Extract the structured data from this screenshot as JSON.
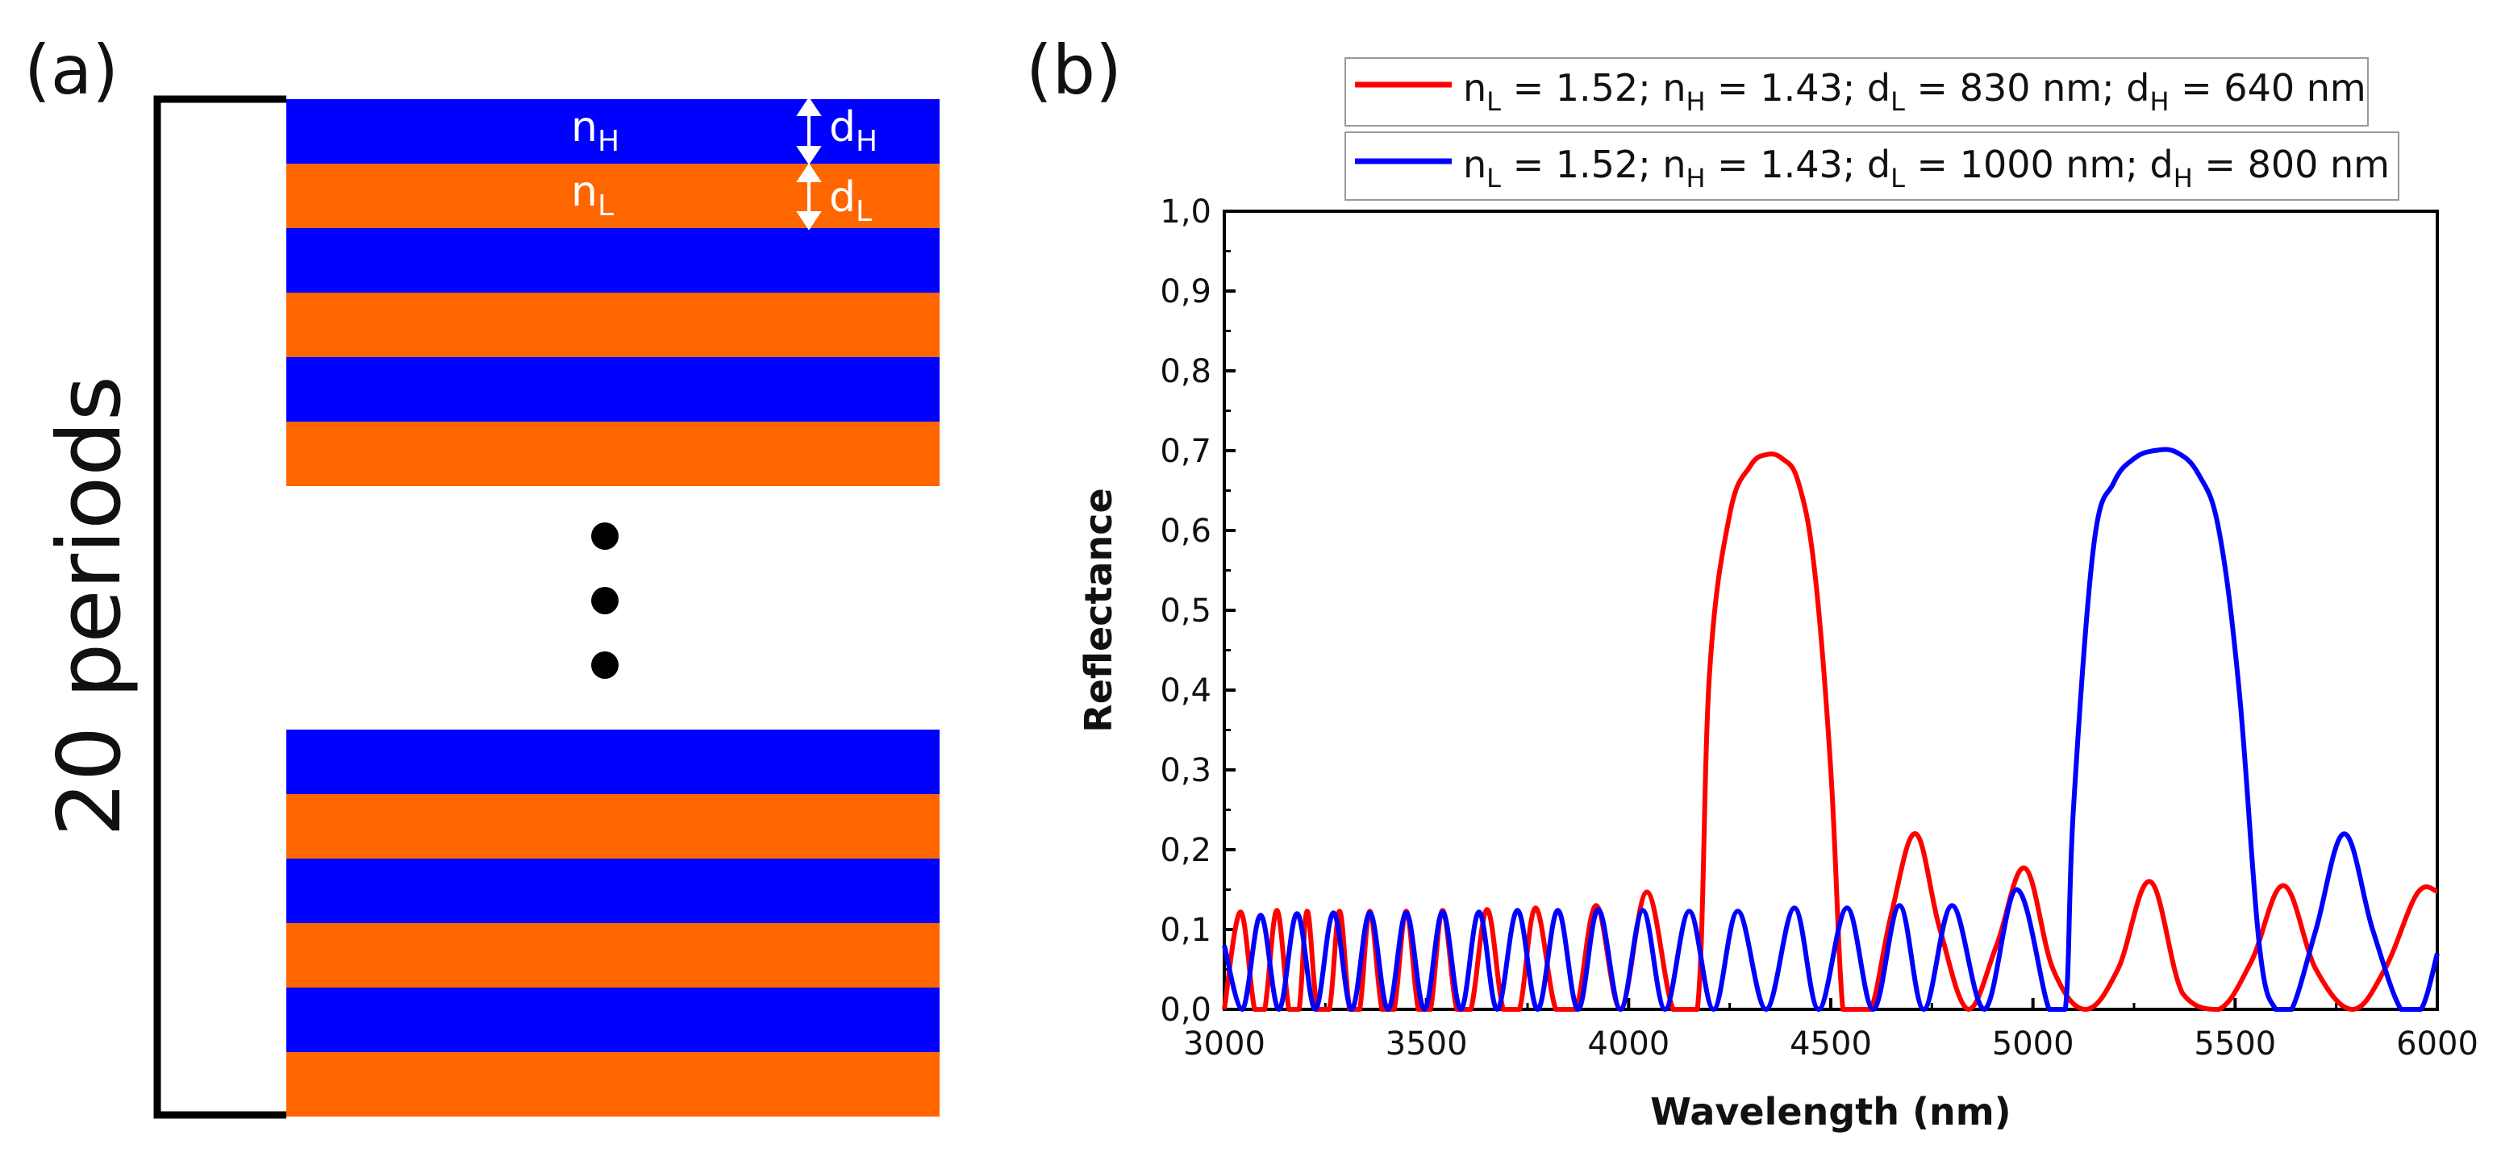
{
  "panel_a": {
    "label": "(a)",
    "periods_label": "20 periods",
    "layer_high_index": "n",
    "layer_high_index_sub": "H",
    "layer_low_index": "n",
    "layer_low_index_sub": "L",
    "layer_high_thickness": "d",
    "layer_high_thickness_sub": "H",
    "layer_low_thickness": "d",
    "layer_low_thickness_sub": "L",
    "colors": {
      "high": "#0000ff",
      "low": "#ff6600"
    }
  },
  "panel_b": {
    "label": "(b)"
  },
  "chart_data": {
    "type": "line",
    "xlabel": "Wavelength (nm)",
    "ylabel": "Reflectance",
    "xlim": [
      3000,
      6000
    ],
    "ylim": [
      0,
      1.0
    ],
    "xticks": [
      3000,
      3500,
      4000,
      4500,
      5000,
      5500,
      6000
    ],
    "xtick_labels": [
      "3000",
      "3500",
      "4000",
      "4500",
      "5000",
      "5500",
      "6000"
    ],
    "yticks": [
      0,
      0.1,
      0.2,
      0.3,
      0.4,
      0.5,
      0.6,
      0.7,
      0.8,
      0.9,
      1.0
    ],
    "ytick_labels": [
      "0,0",
      "0,1",
      "0,2",
      "0,3",
      "0,4",
      "0,5",
      "0,6",
      "0,7",
      "0,8",
      "0,9",
      "1,0"
    ],
    "grid": false,
    "legend_position": "top",
    "series": [
      {
        "name": "red",
        "color": "#ff0000",
        "legend": {
          "nL": "1.52",
          "nH": "1.43",
          "dL": "830 nm",
          "dH": "640 nm"
        },
        "x": [
          3000,
          3040,
          3075,
          3100,
          3130,
          3160,
          3185,
          3205,
          3230,
          3260,
          3285,
          3310,
          3335,
          3360,
          3390,
          3420,
          3450,
          3480,
          3510,
          3540,
          3575,
          3610,
          3650,
          3690,
          3730,
          3770,
          3820,
          3870,
          3920,
          3980,
          4045,
          4110,
          4170,
          4200,
          4250,
          4300,
          4340,
          4380,
          4420,
          4460,
          4500,
          4530,
          4560,
          4600,
          4650,
          4710,
          4770,
          4840,
          4910,
          4980,
          5050,
          5130,
          5210,
          5290,
          5370,
          5460,
          5540,
          5620,
          5700,
          5790,
          5870,
          5950,
          6000
        ],
        "y": [
          0.0,
          0.122,
          0.0,
          0.0,
          0.124,
          0.0,
          0.0,
          0.123,
          0.0,
          0.0,
          0.123,
          0.0,
          0.0,
          0.123,
          0.0,
          0.0,
          0.123,
          0.0,
          0.0,
          0.124,
          0.0,
          0.0,
          0.125,
          0.0,
          0.0,
          0.127,
          0.0,
          0.0,
          0.13,
          0.0,
          0.147,
          0.0,
          0.0,
          0.42,
          0.62,
          0.68,
          0.695,
          0.69,
          0.66,
          0.55,
          0.3,
          0.0,
          0.0,
          0.0,
          0.12,
          0.22,
          0.1,
          0.0,
          0.08,
          0.177,
          0.05,
          0.0,
          0.05,
          0.16,
          0.02,
          0.0,
          0.06,
          0.155,
          0.05,
          0.0,
          0.05,
          0.145,
          0.148
        ]
      },
      {
        "name": "blue",
        "color": "#0000ff",
        "legend": {
          "nL": "1.52",
          "nH": "1.43",
          "dL": "1000 nm",
          "dH": "800 nm"
        },
        "x": [
          3000,
          3045,
          3090,
          3135,
          3180,
          3225,
          3270,
          3315,
          3360,
          3405,
          3450,
          3495,
          3540,
          3585,
          3630,
          3675,
          3725,
          3775,
          3825,
          3875,
          3925,
          3980,
          4035,
          4090,
          4150,
          4210,
          4270,
          4340,
          4410,
          4470,
          4540,
          4605,
          4670,
          4730,
          4800,
          4880,
          4960,
          5040,
          5080,
          5100,
          5150,
          5200,
          5250,
          5300,
          5355,
          5410,
          5460,
          5510,
          5560,
          5600,
          5640,
          5700,
          5770,
          5840,
          5910,
          5960,
          6000
        ],
        "y": [
          0.08,
          0.0,
          0.118,
          0.0,
          0.12,
          0.0,
          0.121,
          0.0,
          0.121,
          0.0,
          0.121,
          0.0,
          0.122,
          0.0,
          0.122,
          0.0,
          0.124,
          0.0,
          0.124,
          0.0,
          0.125,
          0.0,
          0.124,
          0.0,
          0.123,
          0.0,
          0.123,
          0.0,
          0.127,
          0.0,
          0.127,
          0.0,
          0.13,
          0.0,
          0.13,
          0.0,
          0.15,
          0.0,
          0.0,
          0.25,
          0.58,
          0.66,
          0.69,
          0.7,
          0.698,
          0.67,
          0.6,
          0.4,
          0.08,
          0.0,
          0.0,
          0.1,
          0.22,
          0.1,
          0.0,
          0.0,
          0.07
        ]
      }
    ]
  }
}
